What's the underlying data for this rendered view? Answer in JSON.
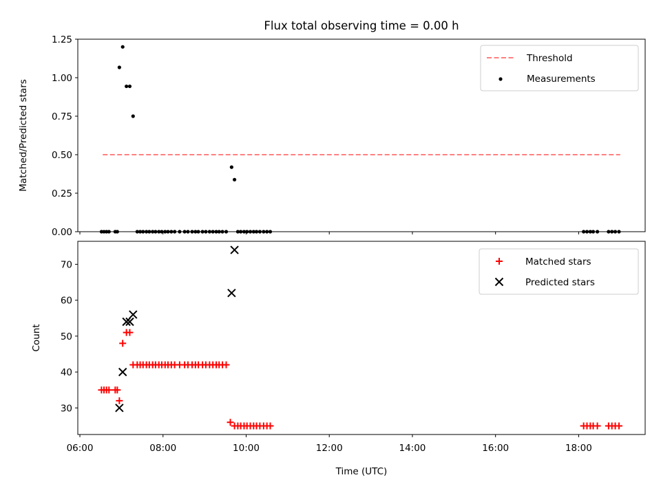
{
  "figure": {
    "title": "Flux total observing time = 0.00 h"
  },
  "chart_data": [
    {
      "type": "scatter",
      "panel": "top",
      "xlabel": "",
      "ylabel": "Matched/Predicted stars",
      "xlim": [
        5.95,
        19.6
      ],
      "ylim": [
        0.0,
        1.25
      ],
      "yticks": [
        0.0,
        0.25,
        0.5,
        0.75,
        1.0,
        1.25
      ],
      "ytick_labels": [
        "0.00",
        "0.25",
        "0.50",
        "0.75",
        "1.00",
        "1.25"
      ],
      "xticks": [
        6,
        8,
        10,
        12,
        14,
        16,
        18
      ],
      "xtick_labels": [
        "",
        "",
        "",
        "",
        "",
        "",
        ""
      ],
      "grid": false,
      "legend_position": "top-right",
      "series": [
        {
          "name": "Threshold",
          "kind": "dashed-line",
          "color": "#ff7f7f",
          "points": [
            [
              6.55,
              0.5
            ],
            [
              19.0,
              0.5
            ]
          ]
        },
        {
          "name": "Measurements",
          "kind": "dot",
          "color": "#000000",
          "points": [
            [
              6.95,
              1.067
            ],
            [
              7.03,
              1.2
            ],
            [
              7.12,
              0.944
            ],
            [
              7.2,
              0.944
            ],
            [
              7.28,
              0.75
            ],
            [
              9.65,
              0.419
            ],
            [
              9.72,
              0.338
            ],
            [
              6.52,
              0
            ],
            [
              6.58,
              0
            ],
            [
              6.64,
              0
            ],
            [
              6.7,
              0
            ],
            [
              6.85,
              0
            ],
            [
              6.9,
              0
            ],
            [
              7.38,
              0
            ],
            [
              7.45,
              0
            ],
            [
              7.52,
              0
            ],
            [
              7.6,
              0
            ],
            [
              7.67,
              0
            ],
            [
              7.75,
              0
            ],
            [
              7.82,
              0
            ],
            [
              7.9,
              0
            ],
            [
              7.97,
              0
            ],
            [
              8.05,
              0
            ],
            [
              8.12,
              0
            ],
            [
              8.2,
              0
            ],
            [
              8.28,
              0
            ],
            [
              8.4,
              0
            ],
            [
              8.52,
              0
            ],
            [
              8.6,
              0
            ],
            [
              8.7,
              0
            ],
            [
              8.78,
              0
            ],
            [
              8.85,
              0
            ],
            [
              8.95,
              0
            ],
            [
              9.03,
              0
            ],
            [
              9.12,
              0
            ],
            [
              9.2,
              0
            ],
            [
              9.28,
              0
            ],
            [
              9.35,
              0
            ],
            [
              9.43,
              0
            ],
            [
              9.52,
              0
            ],
            [
              9.8,
              0
            ],
            [
              9.87,
              0
            ],
            [
              9.95,
              0
            ],
            [
              10.02,
              0
            ],
            [
              10.1,
              0
            ],
            [
              10.18,
              0
            ],
            [
              10.25,
              0
            ],
            [
              10.33,
              0
            ],
            [
              10.42,
              0
            ],
            [
              10.5,
              0
            ],
            [
              10.58,
              0
            ],
            [
              18.12,
              0
            ],
            [
              18.2,
              0
            ],
            [
              18.28,
              0
            ],
            [
              18.35,
              0
            ],
            [
              18.45,
              0
            ],
            [
              18.72,
              0
            ],
            [
              18.8,
              0
            ],
            [
              18.88,
              0
            ],
            [
              18.97,
              0
            ]
          ]
        }
      ]
    },
    {
      "type": "scatter",
      "panel": "bottom",
      "xlabel": "Time (UTC)",
      "ylabel": "Count",
      "xlim": [
        5.95,
        19.6
      ],
      "ylim": [
        22.6,
        76.4
      ],
      "yticks": [
        30,
        40,
        50,
        60,
        70
      ],
      "ytick_labels": [
        "30",
        "40",
        "50",
        "60",
        "70"
      ],
      "xticks": [
        6,
        8,
        10,
        12,
        14,
        16,
        18
      ],
      "xtick_labels": [
        "06:00",
        "08:00",
        "10:00",
        "12:00",
        "14:00",
        "16:00",
        "18:00"
      ],
      "grid": false,
      "legend_position": "top-right",
      "series": [
        {
          "name": "Matched stars",
          "marker": "plus",
          "color": "#ff0000",
          "points": [
            [
              6.52,
              35
            ],
            [
              6.58,
              35
            ],
            [
              6.64,
              35
            ],
            [
              6.7,
              35
            ],
            [
              6.85,
              35
            ],
            [
              6.9,
              35
            ],
            [
              6.95,
              32
            ],
            [
              7.03,
              48
            ],
            [
              7.12,
              51
            ],
            [
              7.2,
              51
            ],
            [
              7.28,
              42
            ],
            [
              7.38,
              42
            ],
            [
              7.45,
              42
            ],
            [
              7.52,
              42
            ],
            [
              7.6,
              42
            ],
            [
              7.67,
              42
            ],
            [
              7.75,
              42
            ],
            [
              7.82,
              42
            ],
            [
              7.9,
              42
            ],
            [
              7.97,
              42
            ],
            [
              8.05,
              42
            ],
            [
              8.12,
              42
            ],
            [
              8.2,
              42
            ],
            [
              8.28,
              42
            ],
            [
              8.4,
              42
            ],
            [
              8.52,
              42
            ],
            [
              8.6,
              42
            ],
            [
              8.7,
              42
            ],
            [
              8.78,
              42
            ],
            [
              8.85,
              42
            ],
            [
              8.95,
              42
            ],
            [
              9.03,
              42
            ],
            [
              9.12,
              42
            ],
            [
              9.2,
              42
            ],
            [
              9.28,
              42
            ],
            [
              9.35,
              42
            ],
            [
              9.43,
              42
            ],
            [
              9.52,
              42
            ],
            [
              9.62,
              26
            ],
            [
              9.72,
              25
            ],
            [
              9.8,
              25
            ],
            [
              9.87,
              25
            ],
            [
              9.95,
              25
            ],
            [
              10.02,
              25
            ],
            [
              10.1,
              25
            ],
            [
              10.18,
              25
            ],
            [
              10.25,
              25
            ],
            [
              10.33,
              25
            ],
            [
              10.42,
              25
            ],
            [
              10.5,
              25
            ],
            [
              10.58,
              25
            ],
            [
              18.12,
              25
            ],
            [
              18.2,
              25
            ],
            [
              18.28,
              25
            ],
            [
              18.35,
              25
            ],
            [
              18.45,
              25
            ],
            [
              18.72,
              25
            ],
            [
              18.8,
              25
            ],
            [
              18.88,
              25
            ],
            [
              18.97,
              25
            ]
          ]
        },
        {
          "name": "Predicted stars",
          "marker": "x",
          "color": "#000000",
          "points": [
            [
              6.95,
              30
            ],
            [
              7.03,
              40
            ],
            [
              7.12,
              54
            ],
            [
              7.2,
              54
            ],
            [
              7.28,
              56
            ],
            [
              9.65,
              62
            ],
            [
              9.72,
              74
            ]
          ]
        }
      ]
    }
  ]
}
